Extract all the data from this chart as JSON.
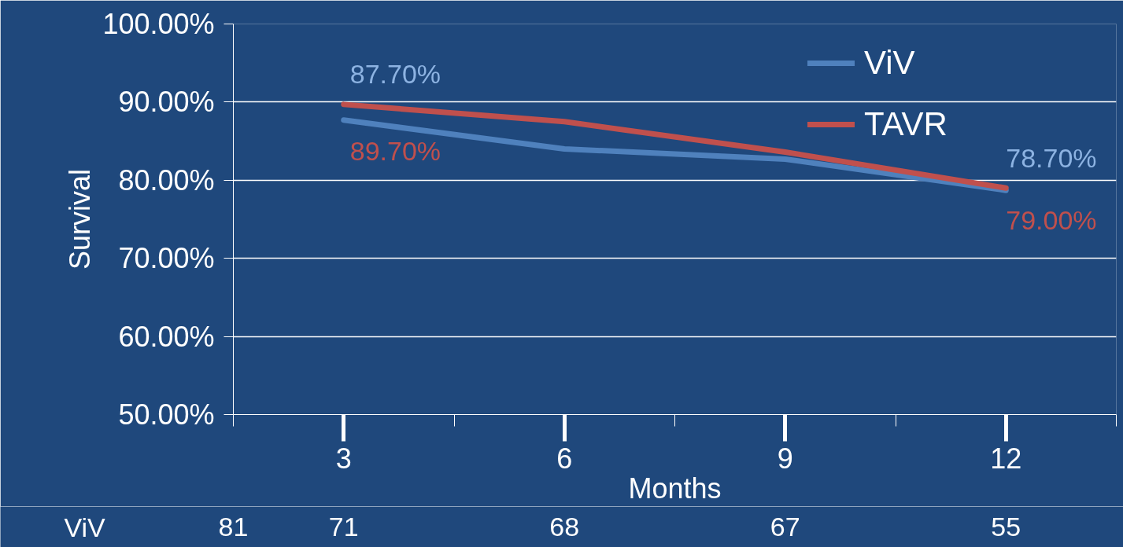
{
  "chart_data": {
    "type": "line",
    "xlabel": "Months",
    "ylabel": "Survival",
    "categories": [
      "3",
      "6",
      "9",
      "12"
    ],
    "series": [
      {
        "name": "ViV",
        "color": "#4f81bd",
        "values": [
          87.7,
          84.0,
          82.7,
          78.7
        ],
        "value_labels": [
          "87.70%",
          null,
          null,
          "78.70%"
        ]
      },
      {
        "name": "TAVR",
        "color": "#c0504d",
        "values": [
          89.7,
          87.5,
          83.6,
          79.0
        ],
        "value_labels": [
          "89.70%",
          null,
          null,
          "79.00%"
        ]
      }
    ],
    "ylim": [
      50,
      100
    ],
    "yticks": [
      {
        "value": 50,
        "label": "50.00%"
      },
      {
        "value": 60,
        "label": "60.00%"
      },
      {
        "value": 70,
        "label": "70.00%"
      },
      {
        "value": 80,
        "label": "80.00%"
      },
      {
        "value": 90,
        "label": "90.00%"
      },
      {
        "value": 100,
        "label": "100.00%"
      }
    ],
    "grid": "y",
    "legend": "top right",
    "marker": "none",
    "line_style": "solid",
    "annotations": [
      "ViV",
      "81",
      "71",
      "68",
      "67",
      "55"
    ]
  }
}
